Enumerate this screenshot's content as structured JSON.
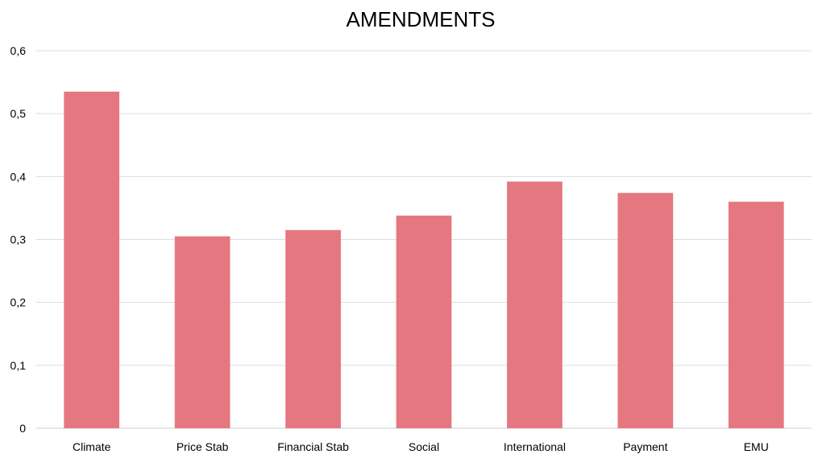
{
  "chart_data": {
    "type": "bar",
    "title": "AMENDMENTS",
    "xlabel": "",
    "ylabel": "",
    "categories": [
      "Climate",
      "Price Stab",
      "Financial Stab",
      "Social",
      "International",
      "Payment",
      "EMU"
    ],
    "values": [
      0.535,
      0.305,
      0.315,
      0.338,
      0.392,
      0.374,
      0.36
    ],
    "ylim": [
      0,
      0.6
    ],
    "yticks": [
      0,
      0.1,
      0.2,
      0.3,
      0.4,
      0.5,
      0.6
    ],
    "ytick_labels": [
      "0",
      "0,1",
      "0,2",
      "0,3",
      "0,4",
      "0,5",
      "0,6"
    ],
    "grid": true,
    "legend": "none",
    "bar_color": "#e57780"
  }
}
